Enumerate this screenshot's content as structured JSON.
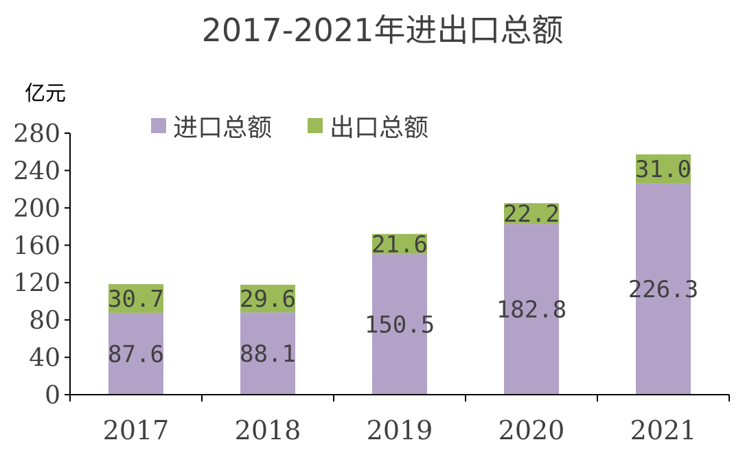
{
  "chart_data": {
    "type": "bar",
    "stacked": true,
    "title": "2017-2021年进出口总额",
    "ylabel": "亿元",
    "categories": [
      "2017",
      "2018",
      "2019",
      "2020",
      "2021"
    ],
    "ylim": [
      0,
      280
    ],
    "yticks": [
      "0",
      "40",
      "80",
      "120",
      "160",
      "200",
      "240",
      "280"
    ],
    "series": [
      {
        "name": "进口总额",
        "color": "#B3A2C8",
        "values": [
          87.6,
          88.1,
          150.5,
          182.8,
          226.3
        ],
        "labels": [
          "87.6",
          "88.1",
          "150.5",
          "182.8",
          "226.3"
        ]
      },
      {
        "name": "出口总额",
        "color": "#9BBB59",
        "values": [
          30.7,
          29.6,
          21.6,
          22.2,
          31.0
        ],
        "labels": [
          "30.7",
          "29.6",
          "21.6",
          "22.2",
          "31.0"
        ]
      }
    ],
    "legend": "top",
    "grid": false
  }
}
